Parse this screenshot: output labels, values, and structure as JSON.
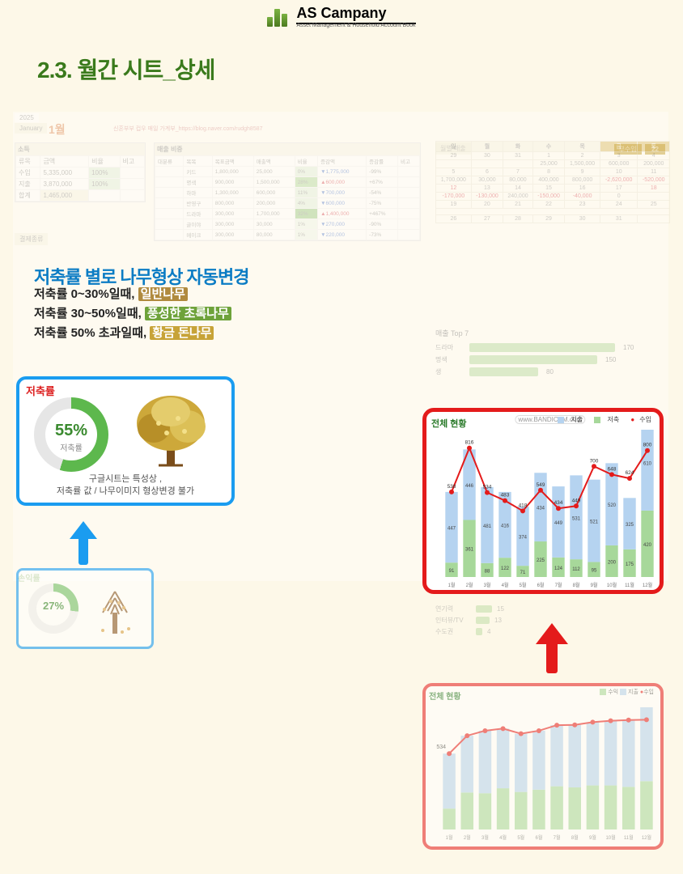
{
  "logo": {
    "name": "AS Campany",
    "sub": "Asset Management & Household Account Book"
  },
  "section_title": "2.3. 월간 시트_상세",
  "bg": {
    "year": "2025",
    "month_en": "January",
    "month_num": "1월",
    "link_label": "신혼부부 컵우 매일 가계부",
    "link_url": "https://blog.naver.com/rudgh8587",
    "income_header": "소득",
    "ratio_header": "매출 비중",
    "monthly_header": "월별 매출",
    "pay_header": "결제종류",
    "top7_header": "매출 Top 7",
    "goal_header": "매출 목표대비 현황",
    "badge_label": "부수입",
    "badge_val": "22"
  },
  "income_table": {
    "cols": [
      "류목",
      "금액",
      "비율",
      "비고"
    ],
    "rows": [
      [
        "수입",
        "5,335,000",
        "100%",
        ""
      ],
      [
        "지출",
        "3,870,000",
        "100%",
        ""
      ]
    ],
    "total_row": [
      "합계",
      "1,465,000",
      "",
      ""
    ]
  },
  "ratio_table": {
    "cols": [
      "대분류",
      "목목",
      "목표금액",
      "매출액",
      "비율",
      "증감액",
      "증감률",
      "비고"
    ],
    "rows": [
      [
        "",
        "키드",
        "1,800,000",
        "25,000",
        "0%",
        "▼1,775,000",
        "-99%",
        ""
      ],
      [
        "",
        "명색",
        "900,000",
        "1,500,000",
        "28%",
        "▲600,000",
        "+67%",
        ""
      ],
      [
        "",
        "하마",
        "1,300,000",
        "600,000",
        "11%",
        "▼700,000",
        "-54%",
        ""
      ],
      [
        "",
        "반영구",
        "800,000",
        "200,000",
        "4%",
        "▼600,000",
        "-75%",
        ""
      ],
      [
        "",
        "드라마",
        "300,000",
        "1,700,000",
        "32%",
        "▲1,400,000",
        "+467%",
        ""
      ],
      [
        "",
        "글이야",
        "300,000",
        "30,000",
        "1%",
        "▼270,000",
        "-90%",
        ""
      ],
      [
        "",
        "메이크",
        "300,000",
        "80,000",
        "1%",
        "▼220,000",
        "-73%",
        ""
      ]
    ]
  },
  "feature": {
    "title": "저축률 별로 나무형상 자동변경",
    "line1_a": "저축률 0~30%일때, ",
    "line1_b": "일반나무",
    "line2_a": "저축률 30~50%일때, ",
    "line2_b": "풍성한 초록나무",
    "line3_a": "저축률 50% 초과일때, ",
    "line3_b": "황금 돈나무"
  },
  "savings_popup": {
    "label": "저축률",
    "pct": "55%",
    "sub": "저축률",
    "note1": "구글시트는 특성상 ,",
    "note2": "저축률 값 / 나무이미지 형상변경 불가",
    "donut_pct": 55,
    "colors": {
      "fill": "#5db84d",
      "track": "#e6e6e6"
    }
  },
  "small_card": {
    "label": "손익률",
    "pct": "27%",
    "donut_pct": 27
  },
  "big_chart": {
    "title": "전체 현황",
    "watermark": "www.BANDICAM.com",
    "legend": [
      {
        "label": "지출",
        "color": "#b5d3f0"
      },
      {
        "label": "저축",
        "color": "#a7d89a"
      },
      {
        "label": "수입",
        "color": "#e41b1b"
      }
    ],
    "months": [
      "1월",
      "2월",
      "3월",
      "4월",
      "5월",
      "6월",
      "7월",
      "8월",
      "9월",
      "10월",
      "11월",
      "12월"
    ],
    "stack_green": [
      91,
      361,
      88,
      122,
      71,
      225,
      124,
      112,
      95,
      200,
      175,
      420
    ],
    "stack_blue": [
      447,
      446,
      481,
      416,
      374,
      434,
      449,
      531,
      521,
      520,
      325,
      610
    ],
    "line_red": [
      538,
      816,
      534,
      483,
      418,
      549,
      434,
      449,
      700,
      648,
      624,
      800
    ],
    "line_labels": [
      "538",
      "816",
      "534",
      "483",
      "418",
      "549",
      "434",
      "449",
      "700",
      "648",
      "624",
      "800"
    ],
    "y_max": 860
  },
  "small_chart": {
    "title": "전체 현황",
    "legend": [
      {
        "label": "수익",
        "color": "#a7d89a"
      },
      {
        "label": "지출",
        "color": "#b5d3f0"
      },
      {
        "label": "수입",
        "color": "#e41b1b"
      }
    ],
    "months": [
      "1월",
      "2월",
      "3월",
      "4월",
      "5월",
      "6월",
      "7월",
      "8월",
      "9월",
      "10월",
      "11월",
      "12월"
    ],
    "stack_green": [
      147,
      260,
      255,
      290,
      264,
      280,
      304,
      296,
      310,
      310,
      300,
      340
    ],
    "stack_blue": [
      387,
      400,
      440,
      420,
      410,
      415,
      430,
      440,
      445,
      455,
      470,
      520
    ],
    "line_red": [
      534,
      660,
      695,
      710,
      674,
      695,
      734,
      736,
      755,
      765,
      770,
      772
    ],
    "left_label": "534",
    "y_max": 820
  },
  "top7": {
    "rows": [
      {
        "label": "드라마",
        "val": 170,
        "max": 180
      },
      {
        "label": "명색",
        "val": 150,
        "max": 180
      },
      {
        "label": "생",
        "val": 80,
        "max": 180
      }
    ],
    "extra": [
      {
        "label": "연기력",
        "val": 15
      },
      {
        "label": "인터뷰/TV",
        "val": 13
      },
      {
        "label": "수도권",
        "val": 4
      }
    ]
  },
  "calendar": {
    "days": [
      "일",
      "월",
      "화",
      "수",
      "목",
      "금",
      "토"
    ],
    "row1": [
      "29",
      "30",
      "31",
      "1",
      "2",
      "3",
      "4"
    ],
    "row1b": [
      "",
      "",
      "",
      "25,000",
      "1,500,000",
      "600,000",
      "200,000"
    ],
    "row2": [
      "5",
      "6",
      "7",
      "8",
      "9",
      "10",
      "11"
    ],
    "row2b": [
      "1,700,000",
      "30,000",
      "80,000",
      "400,000",
      "800,000",
      "-2,620,000",
      "-520,000"
    ],
    "row3": [
      "12",
      "13",
      "14",
      "15",
      "16",
      "17",
      "18"
    ],
    "row3b": [
      "-170,000",
      "-130,000",
      "240,000",
      "-150,000",
      "-40,000",
      "0",
      ""
    ],
    "row4": [
      "19",
      "20",
      "21",
      "22",
      "23",
      "24",
      "25"
    ],
    "row4b": [
      "",
      "",
      "",
      "",
      "",
      "",
      ""
    ],
    "row5": [
      "26",
      "27",
      "28",
      "29",
      "30",
      "31",
      ""
    ]
  },
  "border_colors": {
    "blue": "#1a9cf0",
    "red": "#e41b1b"
  }
}
